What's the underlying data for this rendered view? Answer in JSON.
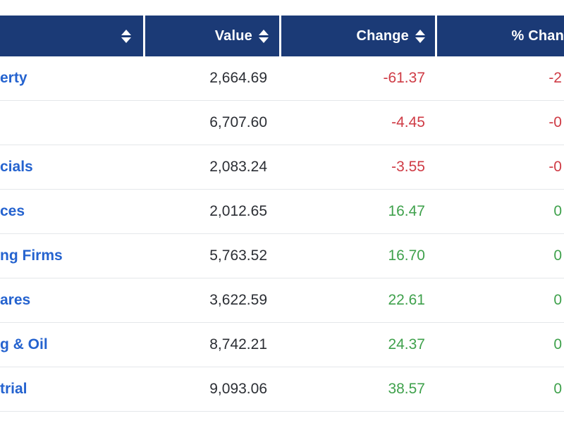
{
  "table": {
    "header": {
      "name_label": "",
      "value_label": "Value",
      "change_label": "Change",
      "pct_change_label": "% Chan"
    },
    "rows": [
      {
        "name": "erty",
        "value": "2,664.69",
        "change": "-61.37",
        "pct_change": "-2",
        "direction": "down"
      },
      {
        "name": "",
        "value": "6,707.60",
        "change": "-4.45",
        "pct_change": "-0",
        "direction": "down"
      },
      {
        "name": "cials",
        "value": "2,083.24",
        "change": "-3.55",
        "pct_change": "-0",
        "direction": "down"
      },
      {
        "name": "ces",
        "value": "2,012.65",
        "change": "16.47",
        "pct_change": "0",
        "direction": "up"
      },
      {
        "name": "ng Firms",
        "value": "5,763.52",
        "change": "16.70",
        "pct_change": "0",
        "direction": "up"
      },
      {
        "name": "ares",
        "value": "3,622.59",
        "change": "22.61",
        "pct_change": "0",
        "direction": "up"
      },
      {
        "name": "g & Oil",
        "value": "8,742.21",
        "change": "24.37",
        "pct_change": "0",
        "direction": "up"
      },
      {
        "name": "trial",
        "value": "9,093.06",
        "change": "38.57",
        "pct_change": "0",
        "direction": "up"
      }
    ],
    "colors": {
      "header_background": "#1b3a76",
      "header_text": "#ffffff",
      "link_blue": "#2563cf",
      "value_text": "#2b2e34",
      "negative_red": "#cf3b45",
      "positive_green": "#3fa14c",
      "row_divider": "#e4e7ea"
    }
  }
}
